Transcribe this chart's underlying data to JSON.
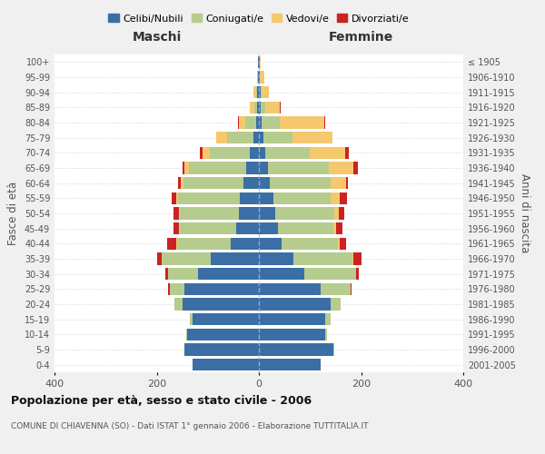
{
  "age_groups": [
    "0-4",
    "5-9",
    "10-14",
    "15-19",
    "20-24",
    "25-29",
    "30-34",
    "35-39",
    "40-44",
    "45-49",
    "50-54",
    "55-59",
    "60-64",
    "65-69",
    "70-74",
    "75-79",
    "80-84",
    "85-89",
    "90-94",
    "95-99",
    "100+"
  ],
  "birth_years": [
    "2001-2005",
    "1996-2000",
    "1991-1995",
    "1986-1990",
    "1981-1985",
    "1976-1980",
    "1971-1975",
    "1966-1970",
    "1961-1965",
    "1956-1960",
    "1951-1955",
    "1946-1950",
    "1941-1945",
    "1936-1940",
    "1931-1935",
    "1926-1930",
    "1921-1925",
    "1916-1920",
    "1911-1915",
    "1906-1910",
    "≤ 1905"
  ],
  "colors": {
    "celibi": "#3a6ea5",
    "coniugati": "#b5cc8e",
    "vedovi": "#f5c86e",
    "divorziati": "#cc2222"
  },
  "maschi": {
    "celibi": [
      130,
      145,
      140,
      130,
      150,
      145,
      120,
      95,
      55,
      45,
      40,
      38,
      30,
      25,
      18,
      10,
      5,
      4,
      3,
      1,
      2
    ],
    "coniugati": [
      0,
      0,
      2,
      5,
      15,
      30,
      58,
      95,
      105,
      110,
      115,
      120,
      118,
      112,
      78,
      52,
      22,
      5,
      2,
      0,
      0
    ],
    "vedovi": [
      0,
      0,
      0,
      0,
      0,
      0,
      0,
      0,
      1,
      1,
      2,
      3,
      5,
      8,
      15,
      22,
      12,
      8,
      5,
      2,
      0
    ],
    "divorziati": [
      0,
      0,
      0,
      0,
      0,
      2,
      5,
      10,
      18,
      12,
      10,
      10,
      5,
      5,
      4,
      0,
      2,
      0,
      0,
      0,
      0
    ]
  },
  "femmine": {
    "celibi": [
      120,
      145,
      130,
      130,
      140,
      120,
      88,
      68,
      45,
      38,
      32,
      28,
      22,
      18,
      12,
      8,
      5,
      4,
      3,
      2,
      1
    ],
    "coniugati": [
      0,
      2,
      3,
      10,
      20,
      60,
      102,
      115,
      110,
      108,
      115,
      112,
      118,
      118,
      88,
      58,
      35,
      8,
      2,
      0,
      0
    ],
    "vedovi": [
      0,
      0,
      0,
      0,
      0,
      0,
      1,
      2,
      3,
      5,
      10,
      18,
      30,
      48,
      68,
      78,
      88,
      28,
      15,
      8,
      2
    ],
    "divorziati": [
      0,
      0,
      0,
      0,
      0,
      2,
      5,
      15,
      12,
      12,
      10,
      15,
      5,
      10,
      8,
      0,
      2,
      2,
      0,
      0,
      0
    ]
  },
  "xlim": 400,
  "title": "Popolazione per età, sesso e stato civile - 2006",
  "subtitle": "COMUNE DI CHIAVENNA (SO) - Dati ISTAT 1° gennaio 2006 - Elaborazione TUTTITALIA.IT",
  "ylabel_left": "Fasce di età",
  "ylabel_right": "Anni di nascita",
  "xlabel_left": "Maschi",
  "xlabel_right": "Femmine",
  "legend_labels": [
    "Celibi/Nubili",
    "Coniugati/e",
    "Vedovi/e",
    "Divorziati/e"
  ],
  "bg_color": "#f0f0f0",
  "plot_bg_color": "#ffffff"
}
